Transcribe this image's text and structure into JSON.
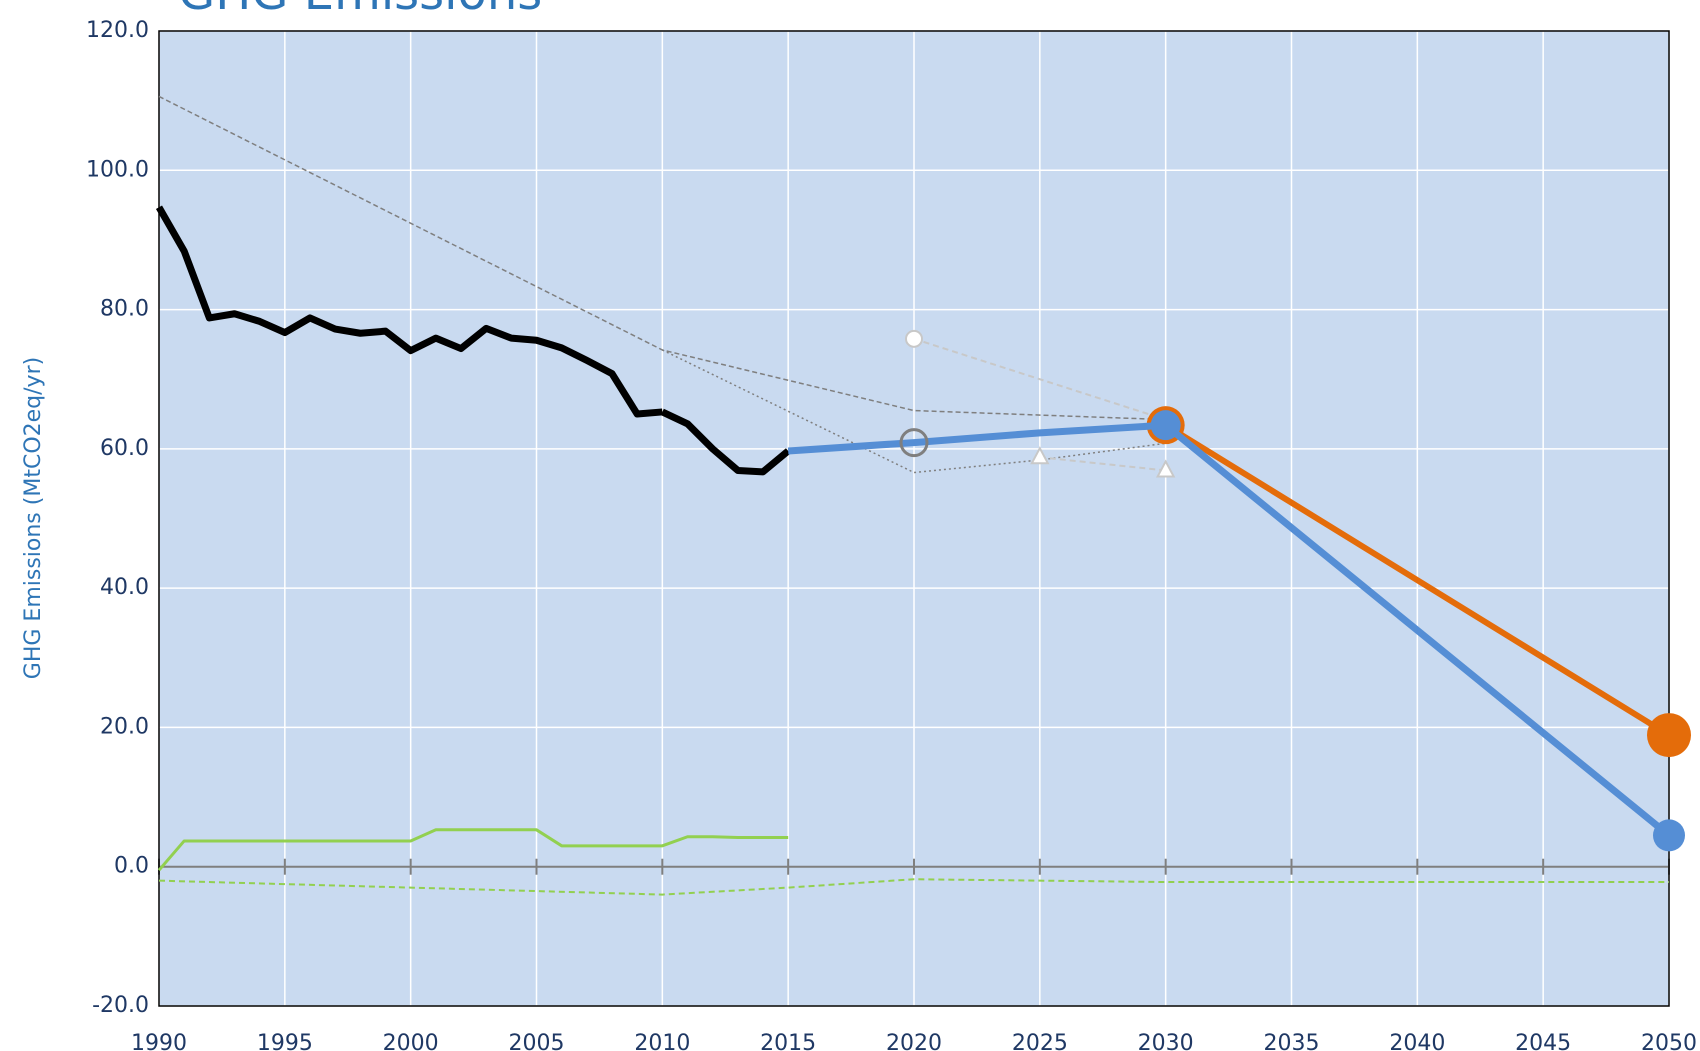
{
  "chart_data": {
    "type": "line",
    "title": "GHG Emissions",
    "y_label": "GHG Emissions (MtCO2eq/yr)",
    "xlim": [
      1990,
      2050
    ],
    "xticks": [
      1990,
      1995,
      2000,
      2005,
      2010,
      2015,
      2020,
      2025,
      2030,
      2035,
      2040,
      2045,
      2050
    ],
    "ylim": [
      -20,
      120
    ],
    "yticks": [
      {
        "value": -20,
        "label": "-20.0"
      },
      {
        "value": 0,
        "label": "0.0"
      },
      {
        "value": 20,
        "label": "20.0"
      },
      {
        "value": 40,
        "label": "40.0"
      },
      {
        "value": 60,
        "label": "60.0"
      },
      {
        "value": 80,
        "label": "80.0"
      },
      {
        "value": 100,
        "label": "100.0"
      },
      {
        "value": 120,
        "label": "120.0"
      }
    ],
    "grid": true,
    "background": "#c9daf0",
    "series": [
      {
        "color": "#7f7f7f",
        "width": 1.5,
        "dash": "5 3",
        "x": [
          1990,
          2010,
          2020,
          2030
        ],
        "values": [
          110.6,
          74.2,
          65.5,
          64.2
        ]
      },
      {
        "color": "#7f7f7f",
        "width": 1.5,
        "dash": "2 3",
        "x": [
          2010,
          2020,
          2025,
          2030
        ],
        "values": [
          74.2,
          56.6,
          58.4,
          60.8
        ]
      },
      {
        "color": "#c8c8c8",
        "width": 2,
        "dash": "6 4",
        "x": [
          2020,
          2030
        ],
        "values": [
          75.8,
          64.2
        ],
        "markers": [
          "circle-white",
          null
        ]
      },
      {
        "color": "#c8c8c8",
        "width": 2,
        "dash": "6 4",
        "x": [
          2025,
          2030
        ],
        "values": [
          58.8,
          56.9
        ],
        "markers": [
          "triangle-white",
          "triangle-white"
        ]
      },
      {
        "color": "#92d050",
        "width": 3,
        "x": [
          1990,
          1991,
          1992,
          1993,
          1994,
          1995,
          1996,
          1997,
          1998,
          1999,
          2000,
          2001,
          2002,
          2003,
          2004,
          2005,
          2006,
          2007,
          2008,
          2009,
          2010,
          2011,
          2012,
          2013,
          2014,
          2015
        ],
        "values": [
          -0.5,
          3.7,
          3.7,
          3.7,
          3.7,
          3.7,
          3.7,
          3.7,
          3.7,
          3.7,
          3.7,
          5.3,
          5.3,
          5.3,
          5.3,
          5.3,
          3.0,
          3.0,
          3.0,
          3.0,
          3.0,
          4.3,
          4.3,
          4.2,
          4.2,
          4.2
        ]
      },
      {
        "color": "#92d050",
        "width": 2,
        "dash": "6 4",
        "x": [
          1990,
          2000,
          2010,
          2015,
          2020,
          2025,
          2030,
          2050
        ],
        "values": [
          -2.0,
          -3.0,
          -4.0,
          -3.0,
          -1.8,
          -2.0,
          -2.2,
          -2.2
        ]
      },
      {
        "color": "#000000",
        "width": 7,
        "x": [
          1990,
          1991,
          1992,
          1993,
          1994,
          1995,
          1996,
          1997,
          1998,
          1999,
          2000,
          2001,
          2002,
          2003,
          2004,
          2005,
          2006,
          2007,
          2008,
          2009,
          2010
        ],
        "values": [
          94.7,
          88.4,
          78.8,
          79.4,
          78.3,
          76.7,
          78.8,
          77.2,
          76.6,
          76.9,
          74.1,
          75.9,
          74.4,
          77.3,
          75.9,
          75.6,
          74.5,
          72.7,
          70.8,
          65.0,
          65.3
        ]
      },
      {
        "color": "#000000",
        "width": 7,
        "x": [
          2010,
          2011,
          2012,
          2013,
          2014,
          2015
        ],
        "values": [
          65.3,
          63.6,
          60.0,
          56.9,
          56.7,
          59.7
        ]
      },
      {
        "color": "#e46c0a",
        "width": 6,
        "x": [
          2030,
          2050
        ],
        "values": [
          63.4,
          18.9
        ],
        "markers": [
          "ring-large",
          "dot-large"
        ]
      },
      {
        "color": "#558ed5",
        "width": 7,
        "x": [
          2015,
          2020,
          2025,
          2030,
          2050
        ],
        "values": [
          59.7,
          60.9,
          62.3,
          63.4,
          4.5
        ],
        "markers": [
          null,
          "circle-hollow",
          null,
          "dot-large",
          "dot"
        ]
      }
    ]
  }
}
